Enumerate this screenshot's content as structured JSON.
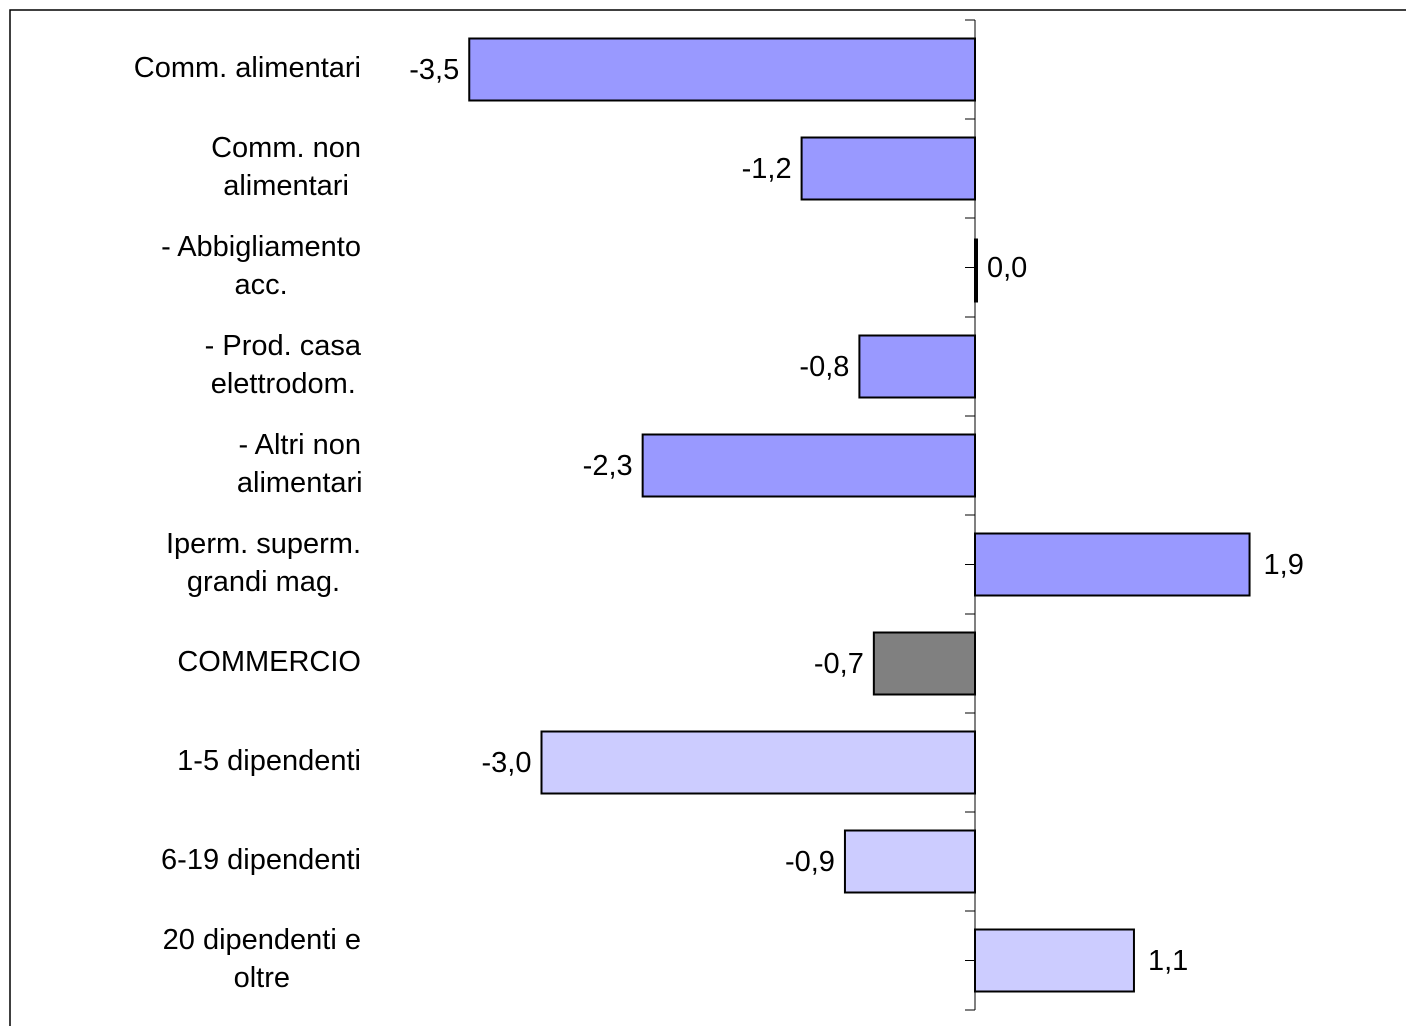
{
  "chart_data": {
    "type": "bar",
    "orientation": "horizontal",
    "categories": [
      [
        "Comm. alimentari"
      ],
      [
        "Comm. non",
        "alimentari"
      ],
      [
        "- Abbigliamento",
        "acc."
      ],
      [
        "- Prod. casa",
        "elettrodom."
      ],
      [
        "- Altri  non",
        "alimentari"
      ],
      [
        "Iperm. superm.",
        "grandi mag."
      ],
      [
        "COMMERCIO"
      ],
      [
        "1-5 dipendenti"
      ],
      [
        "6-19 dipendenti"
      ],
      [
        "20 dipendenti e",
        "oltre"
      ]
    ],
    "values": [
      -3.5,
      -1.2,
      0.0,
      -0.8,
      -2.3,
      1.9,
      -0.7,
      -3.0,
      -0.9,
      1.1
    ],
    "value_labels": [
      "-3,5",
      "-1,2",
      "0,0",
      "-0,8",
      "-2,3",
      "1,9",
      "-0,7",
      "-3,0",
      "-0,9",
      "1,1"
    ],
    "bar_colors": [
      "#9999ff",
      "#9999ff",
      "#9999ff",
      "#9999ff",
      "#9999ff",
      "#9999ff",
      "#808080",
      "#ccccff",
      "#ccccff",
      "#ccccff"
    ],
    "xlim": [
      -3.5,
      3.0
    ],
    "grid": false,
    "legend": "none"
  }
}
